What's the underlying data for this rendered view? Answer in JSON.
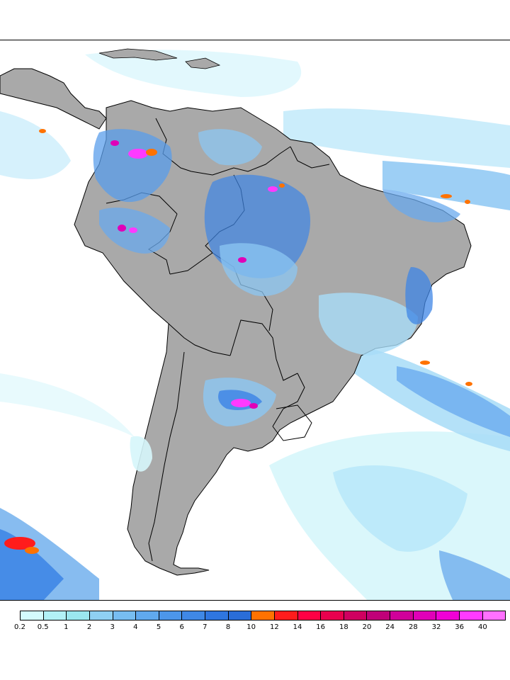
{
  "map": {
    "type": "precipitation-map",
    "region": "South America",
    "colors": {
      "ocean": "#ffffff",
      "land": "#a9a9a9",
      "border": "#000000",
      "light_precip": "#d6f6fb",
      "medium_precip": "#7fc0f0",
      "heavy_precip": "#3f86e6",
      "extreme_precip": "#ff3aff"
    }
  },
  "legend": {
    "tick_labels": [
      "0.2",
      "0.5",
      "1",
      "2",
      "3",
      "4",
      "5",
      "6",
      "7",
      "8",
      "10",
      "12",
      "14",
      "16",
      "18",
      "20",
      "24",
      "28",
      "32",
      "36",
      "40"
    ],
    "swatch_colors": [
      "#d4fbfd",
      "#b2f1f6",
      "#9be7ef",
      "#8fd0f3",
      "#77bdf1",
      "#60a9ee",
      "#4c96ea",
      "#3f88e6",
      "#2f76e0",
      "#2a6dd8",
      "#ff7200",
      "#ff1c1c",
      "#ff0044",
      "#e8004e",
      "#cf0060",
      "#c00078",
      "#d0009a",
      "#e000b8",
      "#f000d6",
      "#ff3aff",
      "#ff70ff"
    ]
  }
}
